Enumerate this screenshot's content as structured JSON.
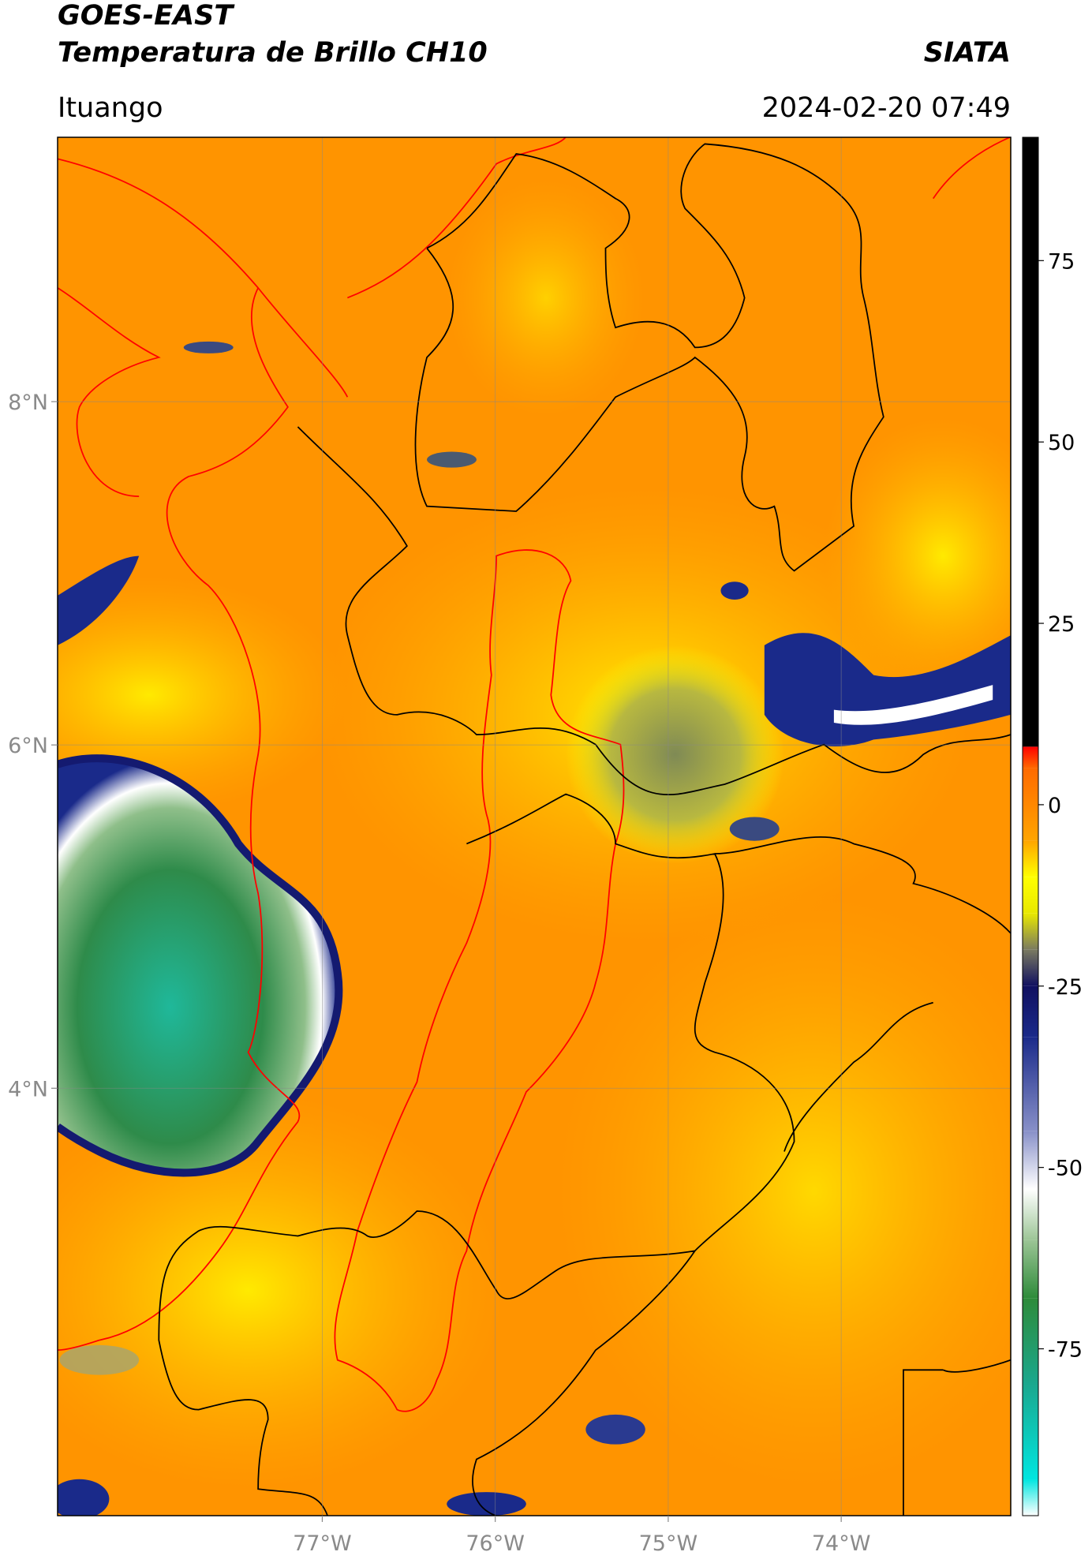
{
  "chart_data": {
    "type": "map",
    "title": "GOES-EAST",
    "subtitle": "Temperatura de Brillo CH10",
    "source": "SIATA",
    "location": "Ituango",
    "datetime": "2024-02-20 07:49",
    "xlim": [
      -78.53,
      -73.02
    ],
    "ylim": [
      1.51,
      9.54
    ],
    "xticks": [
      {
        "value": -77,
        "label": "77°W"
      },
      {
        "value": -76,
        "label": "76°W"
      },
      {
        "value": -75,
        "label": "75°W"
      },
      {
        "value": -74,
        "label": "74°W"
      }
    ],
    "yticks": [
      {
        "value": 8,
        "label": "8°N"
      },
      {
        "value": 6,
        "label": "6°N"
      },
      {
        "value": 4,
        "label": "4°N"
      }
    ],
    "grid": true,
    "colorbar": {
      "lim": [
        -98,
        92
      ],
      "ticks": [
        75,
        50,
        25,
        0,
        -25,
        -50,
        -75
      ],
      "stops": [
        {
          "value": -98,
          "color": "#ffffff"
        },
        {
          "value": -93,
          "color": "#00e6e0"
        },
        {
          "value": -80,
          "color": "#1aa88f"
        },
        {
          "value": -68,
          "color": "#2e8b3a"
        },
        {
          "value": -60,
          "color": "#9cc596"
        },
        {
          "value": -53,
          "color": "#ffffff"
        },
        {
          "value": -45,
          "color": "#8890c8"
        },
        {
          "value": -32,
          "color": "#1a2a8a"
        },
        {
          "value": -25,
          "color": "#101060"
        },
        {
          "value": -20,
          "color": "#7a7a60"
        },
        {
          "value": -15,
          "color": "#e8e800"
        },
        {
          "value": -10,
          "color": "#ffff00"
        },
        {
          "value": -5,
          "color": "#ffa500"
        },
        {
          "value": 5,
          "color": "#ff6a00"
        },
        {
          "value": 8,
          "color": "#ff0000"
        },
        {
          "value": 8,
          "color": "#000000"
        },
        {
          "value": 92,
          "color": "#000000"
        }
      ]
    }
  }
}
